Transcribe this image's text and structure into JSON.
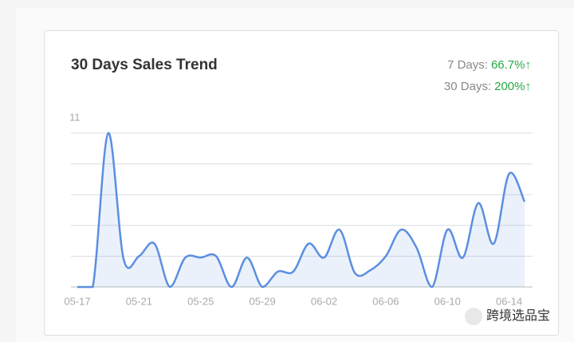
{
  "chart_data": {
    "type": "area",
    "title": "30 Days Sales Trend",
    "stats": [
      {
        "label": "7 Days:",
        "value": "66.7%↑"
      },
      {
        "label": "30 Days:",
        "value": "200%↑"
      }
    ],
    "categories": [
      "05-17",
      null,
      null,
      null,
      "05-21",
      null,
      null,
      null,
      "05-25",
      null,
      null,
      null,
      "05-29",
      null,
      null,
      null,
      "06-02",
      null,
      null,
      null,
      "06-06",
      null,
      null,
      null,
      "06-10",
      null,
      null,
      null,
      "06-14",
      null
    ],
    "values": [
      0,
      0,
      11,
      2,
      2.2,
      3.1,
      0,
      2.1,
      2.1,
      2.2,
      0,
      2.1,
      0,
      1.1,
      1.1,
      3.1,
      2.1,
      4.1,
      1,
      1.2,
      2.2,
      4.1,
      2.8,
      0,
      4.1,
      2.1,
      6,
      3.1,
      8.1,
      6.1
    ],
    "color": "#5b8fe0",
    "ylim": [
      0,
      11
    ],
    "yticks": [
      11
    ],
    "ygrid": [
      0,
      2.2,
      4.4,
      6.6,
      8.8,
      11
    ]
  },
  "watermark": "跨境选品宝"
}
